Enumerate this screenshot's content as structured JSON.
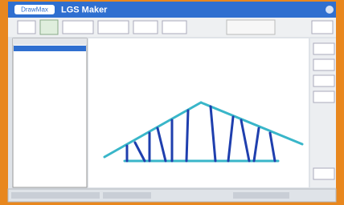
{
  "header": {
    "logo": "DrawMax",
    "title": "LGS Maker"
  }
}
